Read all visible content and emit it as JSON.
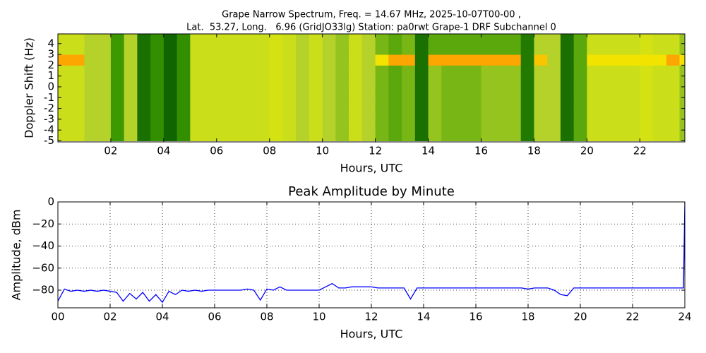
{
  "chart_data": [
    {
      "type": "heatmap",
      "title": [
        "Grape Narrow Spectrum, Freq. = 14.67 MHz, 2025-10-07T00-00 ,",
        "Lat.  53.27, Long.   6.96 (GridJO33lg) Station: pa0rwt Grape-1 DRF Subchannel 0"
      ],
      "x_label": "Hours, UTC",
      "y_label": "Doppler Shift (Hz)",
      "xlim": [
        0,
        23.7
      ],
      "ylim": [
        -5.1,
        4.9
      ],
      "xticks": [
        {
          "value": 2,
          "label": "02"
        },
        {
          "value": 4,
          "label": "04"
        },
        {
          "value": 6,
          "label": "06"
        },
        {
          "value": 8,
          "label": "08"
        },
        {
          "value": 10,
          "label": "10"
        },
        {
          "value": 12,
          "label": "12"
        },
        {
          "value": 14,
          "label": "14"
        },
        {
          "value": 16,
          "label": "16"
        },
        {
          "value": 18,
          "label": "18"
        },
        {
          "value": 20,
          "label": "20"
        },
        {
          "value": 22,
          "label": "22"
        }
      ],
      "yticks": [
        -5,
        -4,
        -3,
        -2,
        -1,
        0,
        1,
        2,
        3,
        4
      ],
      "zlim": [
        0,
        1
      ],
      "colorscale": [
        [
          0,
          "#005000"
        ],
        [
          0.35,
          "#3c9a00"
        ],
        [
          0.55,
          "#b4d22a"
        ],
        [
          0.68,
          "#f0f000"
        ],
        [
          0.82,
          "#ff9900"
        ],
        [
          1,
          "#ff0000"
        ]
      ],
      "x_bins": [
        0,
        0.5,
        1,
        1.5,
        2,
        2.5,
        3,
        3.5,
        4,
        4.5,
        5,
        5.5,
        6,
        6.5,
        7,
        7.5,
        8,
        8.5,
        9,
        9.5,
        10,
        10.5,
        11,
        11.5,
        12,
        12.5,
        13,
        13.5,
        14,
        14.5,
        15,
        15.5,
        16,
        16.5,
        17,
        17.5,
        18,
        18.5,
        19,
        19.5,
        20,
        20.5,
        21,
        21.5,
        22,
        22.5,
        23,
        23.5,
        24
      ],
      "y_bins": [
        -5,
        -4,
        -3,
        -2,
        -1,
        0,
        1,
        2,
        3,
        4,
        5
      ],
      "z": [
        [
          0.6,
          0.6,
          0.55,
          0.55,
          0.35,
          0.55,
          0.15,
          0.3,
          0.1,
          0.3,
          0.6,
          0.6,
          0.6,
          0.6,
          0.6,
          0.6,
          0.62,
          0.6,
          0.55,
          0.6,
          0.55,
          0.5,
          0.6,
          0.55,
          0.45,
          0.4,
          0.45,
          0.15,
          0.5,
          0.45,
          0.45,
          0.45,
          0.5,
          0.5,
          0.5,
          0.2,
          0.55,
          0.55,
          0.15,
          0.4,
          0.6,
          0.6,
          0.6,
          0.6,
          0.62,
          0.6,
          0.6,
          0.5
        ],
        [
          0.6,
          0.6,
          0.55,
          0.55,
          0.35,
          0.55,
          0.15,
          0.3,
          0.1,
          0.3,
          0.6,
          0.6,
          0.6,
          0.6,
          0.6,
          0.6,
          0.62,
          0.6,
          0.55,
          0.6,
          0.55,
          0.5,
          0.6,
          0.55,
          0.45,
          0.4,
          0.45,
          0.15,
          0.5,
          0.45,
          0.45,
          0.45,
          0.5,
          0.5,
          0.5,
          0.2,
          0.55,
          0.55,
          0.15,
          0.4,
          0.6,
          0.6,
          0.6,
          0.6,
          0.62,
          0.6,
          0.6,
          0.5
        ],
        [
          0.6,
          0.6,
          0.55,
          0.55,
          0.35,
          0.55,
          0.15,
          0.3,
          0.1,
          0.3,
          0.6,
          0.6,
          0.6,
          0.6,
          0.6,
          0.6,
          0.62,
          0.6,
          0.55,
          0.6,
          0.55,
          0.5,
          0.6,
          0.55,
          0.45,
          0.4,
          0.45,
          0.15,
          0.5,
          0.45,
          0.45,
          0.45,
          0.5,
          0.5,
          0.5,
          0.2,
          0.55,
          0.55,
          0.15,
          0.4,
          0.6,
          0.6,
          0.6,
          0.6,
          0.62,
          0.6,
          0.6,
          0.5
        ],
        [
          0.6,
          0.6,
          0.55,
          0.55,
          0.35,
          0.55,
          0.15,
          0.3,
          0.1,
          0.3,
          0.6,
          0.6,
          0.6,
          0.6,
          0.6,
          0.6,
          0.62,
          0.6,
          0.55,
          0.6,
          0.55,
          0.5,
          0.6,
          0.55,
          0.45,
          0.4,
          0.45,
          0.15,
          0.5,
          0.45,
          0.45,
          0.45,
          0.5,
          0.5,
          0.5,
          0.2,
          0.55,
          0.55,
          0.15,
          0.4,
          0.6,
          0.6,
          0.6,
          0.6,
          0.62,
          0.6,
          0.6,
          0.5
        ],
        [
          0.6,
          0.6,
          0.55,
          0.55,
          0.35,
          0.55,
          0.15,
          0.3,
          0.1,
          0.3,
          0.6,
          0.6,
          0.6,
          0.6,
          0.6,
          0.6,
          0.62,
          0.6,
          0.55,
          0.6,
          0.55,
          0.5,
          0.6,
          0.55,
          0.45,
          0.4,
          0.45,
          0.15,
          0.5,
          0.45,
          0.45,
          0.45,
          0.5,
          0.5,
          0.5,
          0.2,
          0.55,
          0.55,
          0.15,
          0.4,
          0.6,
          0.6,
          0.6,
          0.6,
          0.62,
          0.6,
          0.6,
          0.5
        ],
        [
          0.6,
          0.6,
          0.55,
          0.55,
          0.35,
          0.55,
          0.15,
          0.3,
          0.1,
          0.3,
          0.6,
          0.6,
          0.6,
          0.6,
          0.6,
          0.6,
          0.62,
          0.6,
          0.55,
          0.6,
          0.55,
          0.5,
          0.6,
          0.55,
          0.45,
          0.4,
          0.45,
          0.15,
          0.5,
          0.45,
          0.45,
          0.45,
          0.5,
          0.5,
          0.5,
          0.2,
          0.55,
          0.55,
          0.15,
          0.4,
          0.6,
          0.6,
          0.6,
          0.6,
          0.62,
          0.6,
          0.6,
          0.5
        ],
        [
          0.6,
          0.6,
          0.55,
          0.55,
          0.35,
          0.55,
          0.15,
          0.3,
          0.1,
          0.3,
          0.6,
          0.6,
          0.6,
          0.6,
          0.6,
          0.6,
          0.62,
          0.6,
          0.55,
          0.6,
          0.55,
          0.5,
          0.6,
          0.55,
          0.45,
          0.4,
          0.45,
          0.15,
          0.5,
          0.45,
          0.45,
          0.45,
          0.5,
          0.5,
          0.5,
          0.2,
          0.55,
          0.55,
          0.15,
          0.4,
          0.6,
          0.6,
          0.6,
          0.6,
          0.62,
          0.6,
          0.6,
          0.5
        ],
        [
          0.8,
          0.8,
          0.55,
          0.55,
          0.35,
          0.55,
          0.15,
          0.3,
          0.1,
          0.3,
          0.6,
          0.6,
          0.6,
          0.6,
          0.6,
          0.6,
          0.62,
          0.6,
          0.55,
          0.6,
          0.55,
          0.5,
          0.6,
          0.55,
          0.7,
          0.8,
          0.8,
          0.15,
          0.8,
          0.8,
          0.8,
          0.8,
          0.8,
          0.8,
          0.8,
          0.2,
          0.75,
          0.55,
          0.15,
          0.4,
          0.7,
          0.7,
          0.7,
          0.7,
          0.7,
          0.7,
          0.8,
          0.7
        ],
        [
          0.6,
          0.6,
          0.55,
          0.55,
          0.35,
          0.55,
          0.15,
          0.3,
          0.1,
          0.3,
          0.6,
          0.6,
          0.6,
          0.6,
          0.6,
          0.6,
          0.62,
          0.6,
          0.55,
          0.6,
          0.55,
          0.5,
          0.6,
          0.55,
          0.45,
          0.4,
          0.45,
          0.15,
          0.4,
          0.4,
          0.4,
          0.4,
          0.4,
          0.4,
          0.4,
          0.2,
          0.55,
          0.55,
          0.15,
          0.4,
          0.6,
          0.6,
          0.6,
          0.6,
          0.62,
          0.6,
          0.6,
          0.5
        ],
        [
          0.6,
          0.6,
          0.55,
          0.55,
          0.35,
          0.55,
          0.15,
          0.3,
          0.1,
          0.3,
          0.6,
          0.6,
          0.6,
          0.6,
          0.6,
          0.6,
          0.62,
          0.6,
          0.55,
          0.6,
          0.55,
          0.5,
          0.6,
          0.55,
          0.45,
          0.4,
          0.45,
          0.15,
          0.4,
          0.4,
          0.4,
          0.4,
          0.4,
          0.4,
          0.4,
          0.2,
          0.55,
          0.55,
          0.15,
          0.4,
          0.6,
          0.6,
          0.6,
          0.6,
          0.62,
          0.6,
          0.6,
          0.5
        ]
      ]
    },
    {
      "type": "line",
      "title": "Peak Amplitude by Minute",
      "x_label": "Hours, UTC",
      "y_label": "Amplitude, dBm",
      "xlim": [
        0,
        24
      ],
      "ylim": [
        -96,
        0
      ],
      "grid": true,
      "xticks": [
        {
          "value": 0,
          "label": "00"
        },
        {
          "value": 2,
          "label": "02"
        },
        {
          "value": 4,
          "label": "04"
        },
        {
          "value": 6,
          "label": "06"
        },
        {
          "value": 8,
          "label": "08"
        },
        {
          "value": 10,
          "label": "10"
        },
        {
          "value": 12,
          "label": "12"
        },
        {
          "value": 14,
          "label": "14"
        },
        {
          "value": 16,
          "label": "16"
        },
        {
          "value": 18,
          "label": "18"
        },
        {
          "value": 20,
          "label": "20"
        },
        {
          "value": 22,
          "label": "22"
        },
        {
          "value": 24,
          "label": "24"
        }
      ],
      "yticks": [
        {
          "value": -80,
          "label": "−80"
        },
        {
          "value": -60,
          "label": "−60"
        },
        {
          "value": -40,
          "label": "−40"
        },
        {
          "value": -20,
          "label": "−20"
        },
        0
      ],
      "x": [
        0,
        0.25,
        0.5,
        0.75,
        1,
        1.25,
        1.5,
        1.75,
        2,
        2.25,
        2.5,
        2.75,
        3,
        3.25,
        3.5,
        3.75,
        4,
        4.25,
        4.5,
        4.75,
        5,
        5.25,
        5.5,
        5.75,
        6,
        6.25,
        6.5,
        6.75,
        7,
        7.25,
        7.5,
        7.75,
        8,
        8.25,
        8.5,
        8.75,
        9,
        9.25,
        9.5,
        9.75,
        10,
        10.25,
        10.5,
        10.75,
        11,
        11.25,
        11.5,
        11.75,
        12,
        12.25,
        12.5,
        12.75,
        13,
        13.25,
        13.5,
        13.75,
        14,
        14.25,
        14.5,
        14.75,
        15,
        15.25,
        15.5,
        15.75,
        16,
        16.25,
        16.5,
        16.75,
        17,
        17.25,
        17.5,
        17.75,
        18,
        18.25,
        18.5,
        18.75,
        19,
        19.25,
        19.5,
        19.75,
        20,
        20.25,
        20.5,
        20.75,
        21,
        21.25,
        21.5,
        21.75,
        22,
        22.25,
        22.5,
        22.75,
        23,
        23.25,
        23.5,
        23.75,
        23.95,
        24
      ],
      "series": [
        {
          "color": "#0000ff",
          "values": [
            -90,
            -79,
            -81,
            -80,
            -81,
            -80,
            -81,
            -80,
            -81,
            -82,
            -90,
            -83,
            -88,
            -82,
            -90,
            -84,
            -91,
            -81,
            -84,
            -80,
            -81,
            -80,
            -81,
            -80,
            -80,
            -80,
            -80,
            -80,
            -80,
            -79,
            -80,
            -89,
            -79,
            -80,
            -77,
            -80,
            -80,
            -80,
            -80,
            -80,
            -80,
            -77,
            -74,
            -78,
            -78,
            -77,
            -77,
            -77,
            -77,
            -78,
            -78,
            -78,
            -78,
            -78,
            -88,
            -78,
            -78,
            -78,
            -78,
            -78,
            -78,
            -78,
            -78,
            -78,
            -78,
            -78,
            -78,
            -78,
            -78,
            -78,
            -78,
            -78,
            -79,
            -78,
            -78,
            -78,
            -80,
            -84,
            -85,
            -78,
            -78,
            -78,
            -78,
            -78,
            -78,
            -78,
            -78,
            -78,
            -78,
            -78,
            -78,
            -78,
            -78,
            -78,
            -78,
            -78,
            -78,
            0
          ]
        }
      ]
    }
  ]
}
